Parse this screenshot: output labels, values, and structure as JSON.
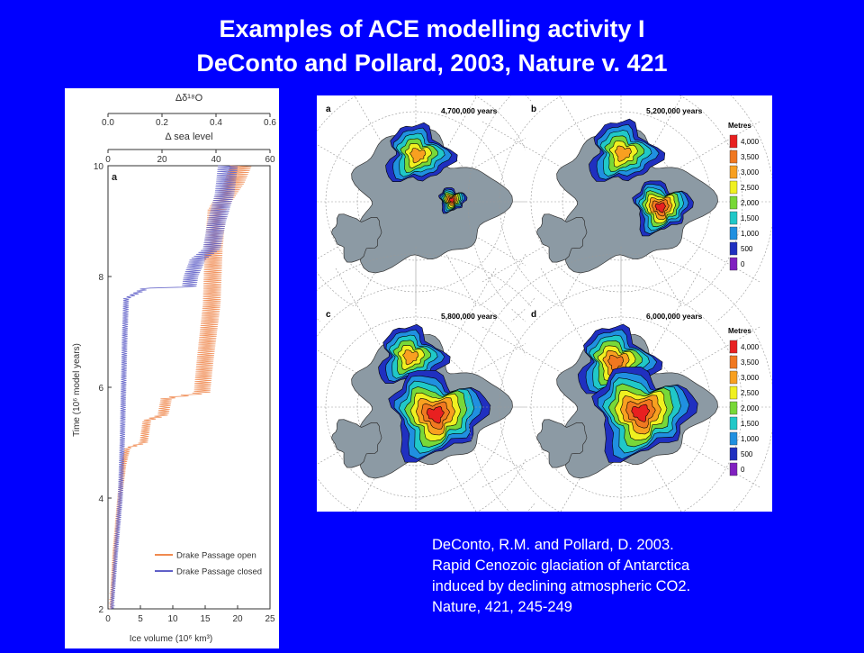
{
  "slide": {
    "title_line1": "Examples of ACE modelling activity I",
    "title_line2": "DeConto and Pollard, 2003, Nature v. 421",
    "citation": [
      "DeConto, R.M. and Pollard, D. 2003.",
      "Rapid Cenozoic glaciation of Antarctica",
      "induced by declining atmospheric CO2.",
      "Nature, 421, 245-249"
    ]
  },
  "chart_data": {
    "type": "line",
    "panel_label": "a",
    "xlabel": "Ice volume (10⁶ km³)",
    "ylabel": "Time (10⁶ model years)",
    "top_axis1_label": "Δδ¹⁸O",
    "top_axis1_ticks": [
      "0.0",
      "0.2",
      "0.4",
      "0.6"
    ],
    "top_axis2_label": "Δ sea level",
    "top_axis2_ticks": [
      "0",
      "20",
      "40",
      "60"
    ],
    "xlim": [
      0,
      25
    ],
    "ylim": [
      2,
      10
    ],
    "x_ticks": [
      "0",
      "5",
      "10",
      "15",
      "20",
      "25"
    ],
    "y_ticks": [
      "2",
      "4",
      "6",
      "8",
      "10"
    ],
    "legend_position": "bottom-right",
    "series": [
      {
        "name": "Drake Passage open",
        "color": "#f08a50",
        "points": [
          [
            0.5,
            2.0
          ],
          [
            1.0,
            3.0
          ],
          [
            1.8,
            4.0
          ],
          [
            2.4,
            4.6
          ],
          [
            3.0,
            4.9
          ],
          [
            5.5,
            5.0
          ],
          [
            6.0,
            5.4
          ],
          [
            8.5,
            5.5
          ],
          [
            9.0,
            5.8
          ],
          [
            14.5,
            5.9
          ],
          [
            15.0,
            6.5
          ],
          [
            16.0,
            7.5
          ],
          [
            16.3,
            8.5
          ],
          [
            16.8,
            9.2
          ],
          [
            19.5,
            9.7
          ],
          [
            20.5,
            10.0
          ]
        ]
      },
      {
        "name": "Drake Passage closed",
        "color": "#6060c8",
        "points": [
          [
            0.6,
            2.0
          ],
          [
            1.2,
            3.0
          ],
          [
            1.9,
            4.0
          ],
          [
            2.2,
            5.0
          ],
          [
            2.4,
            6.0
          ],
          [
            2.6,
            7.0
          ],
          [
            2.8,
            7.6
          ],
          [
            6.0,
            7.8
          ],
          [
            12.5,
            7.8
          ],
          [
            12.8,
            8.0
          ],
          [
            13.8,
            8.3
          ],
          [
            16.0,
            8.5
          ],
          [
            16.8,
            9.0
          ],
          [
            18.0,
            9.5
          ],
          [
            18.5,
            10.0
          ]
        ]
      }
    ]
  },
  "maps": {
    "unit_label": "Metres",
    "contour_levels": [
      "4,000",
      "3,500",
      "3,000",
      "2,500",
      "2,000",
      "1,500",
      "1,000",
      "500",
      "0"
    ],
    "contour_colors": [
      "#e82020",
      "#f07820",
      "#f8a020",
      "#f0f020",
      "#78d838",
      "#20c8c8",
      "#2090e0",
      "#2030c0",
      "#8020c0"
    ],
    "panels": [
      {
        "label": "a",
        "time": "4,700,000 years"
      },
      {
        "label": "b",
        "time": "5,200,000 years"
      },
      {
        "label": "c",
        "time": "5,800,000 years"
      },
      {
        "label": "d",
        "time": "6,000,000 years"
      }
    ]
  }
}
